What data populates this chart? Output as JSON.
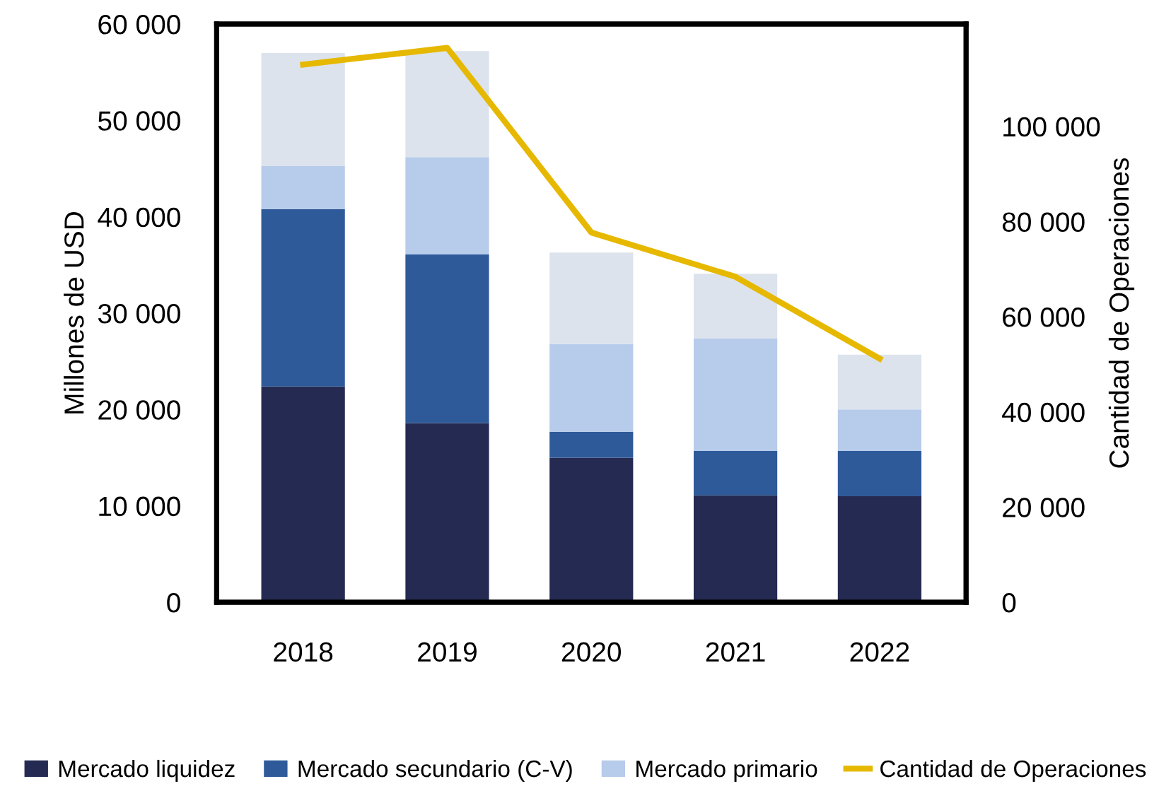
{
  "chart_data": {
    "type": "bar",
    "stacked": true,
    "ylabel": "Millones de USD",
    "y2label": "Cantidad de Operaciones",
    "categories": [
      "2018",
      "2019",
      "2020",
      "2021",
      "2022"
    ],
    "series": [
      {
        "name": "Mercado liquidez",
        "color": "#252a52",
        "values": [
          22400,
          18600,
          15000,
          11100,
          11000
        ]
      },
      {
        "name": "Mercado secundario (C-V)",
        "color": "#2e5a9a",
        "values": [
          18400,
          17500,
          2700,
          4600,
          4700
        ]
      },
      {
        "name": "Mercado primario",
        "color": "#b7cbea",
        "values": [
          4500,
          10100,
          9100,
          11700,
          4300
        ]
      },
      {
        "color": "#dce3ec",
        "values": [
          11700,
          11000,
          9500,
          6700,
          5700
        ]
      },
      {
        "name": "Cantidad de Operaciones",
        "type": "line",
        "axis": "y2",
        "color": "#e6b800",
        "values": [
          113000,
          116500,
          77700,
          68400,
          51200
        ]
      }
    ],
    "ylim": [
      0,
      60000
    ],
    "yticks": [
      {
        "value": 0,
        "label": "0"
      },
      {
        "value": 10000,
        "label": "10 000"
      },
      {
        "value": 20000,
        "label": "20 000"
      },
      {
        "value": 30000,
        "label": "30 000"
      },
      {
        "value": 40000,
        "label": "40 000"
      },
      {
        "value": 50000,
        "label": "50 000"
      },
      {
        "value": 60000,
        "label": "60 000"
      }
    ],
    "y2lim": [
      0,
      121500
    ],
    "y2ticks": [
      {
        "value": 0,
        "label": "0"
      },
      {
        "value": 20000,
        "label": "20 000"
      },
      {
        "value": 40000,
        "label": "40 000"
      },
      {
        "value": 60000,
        "label": "60 000"
      },
      {
        "value": 80000,
        "label": "80 000"
      },
      {
        "value": 100000,
        "label": "100 000"
      }
    ],
    "grid": false,
    "legend": "bottom"
  }
}
